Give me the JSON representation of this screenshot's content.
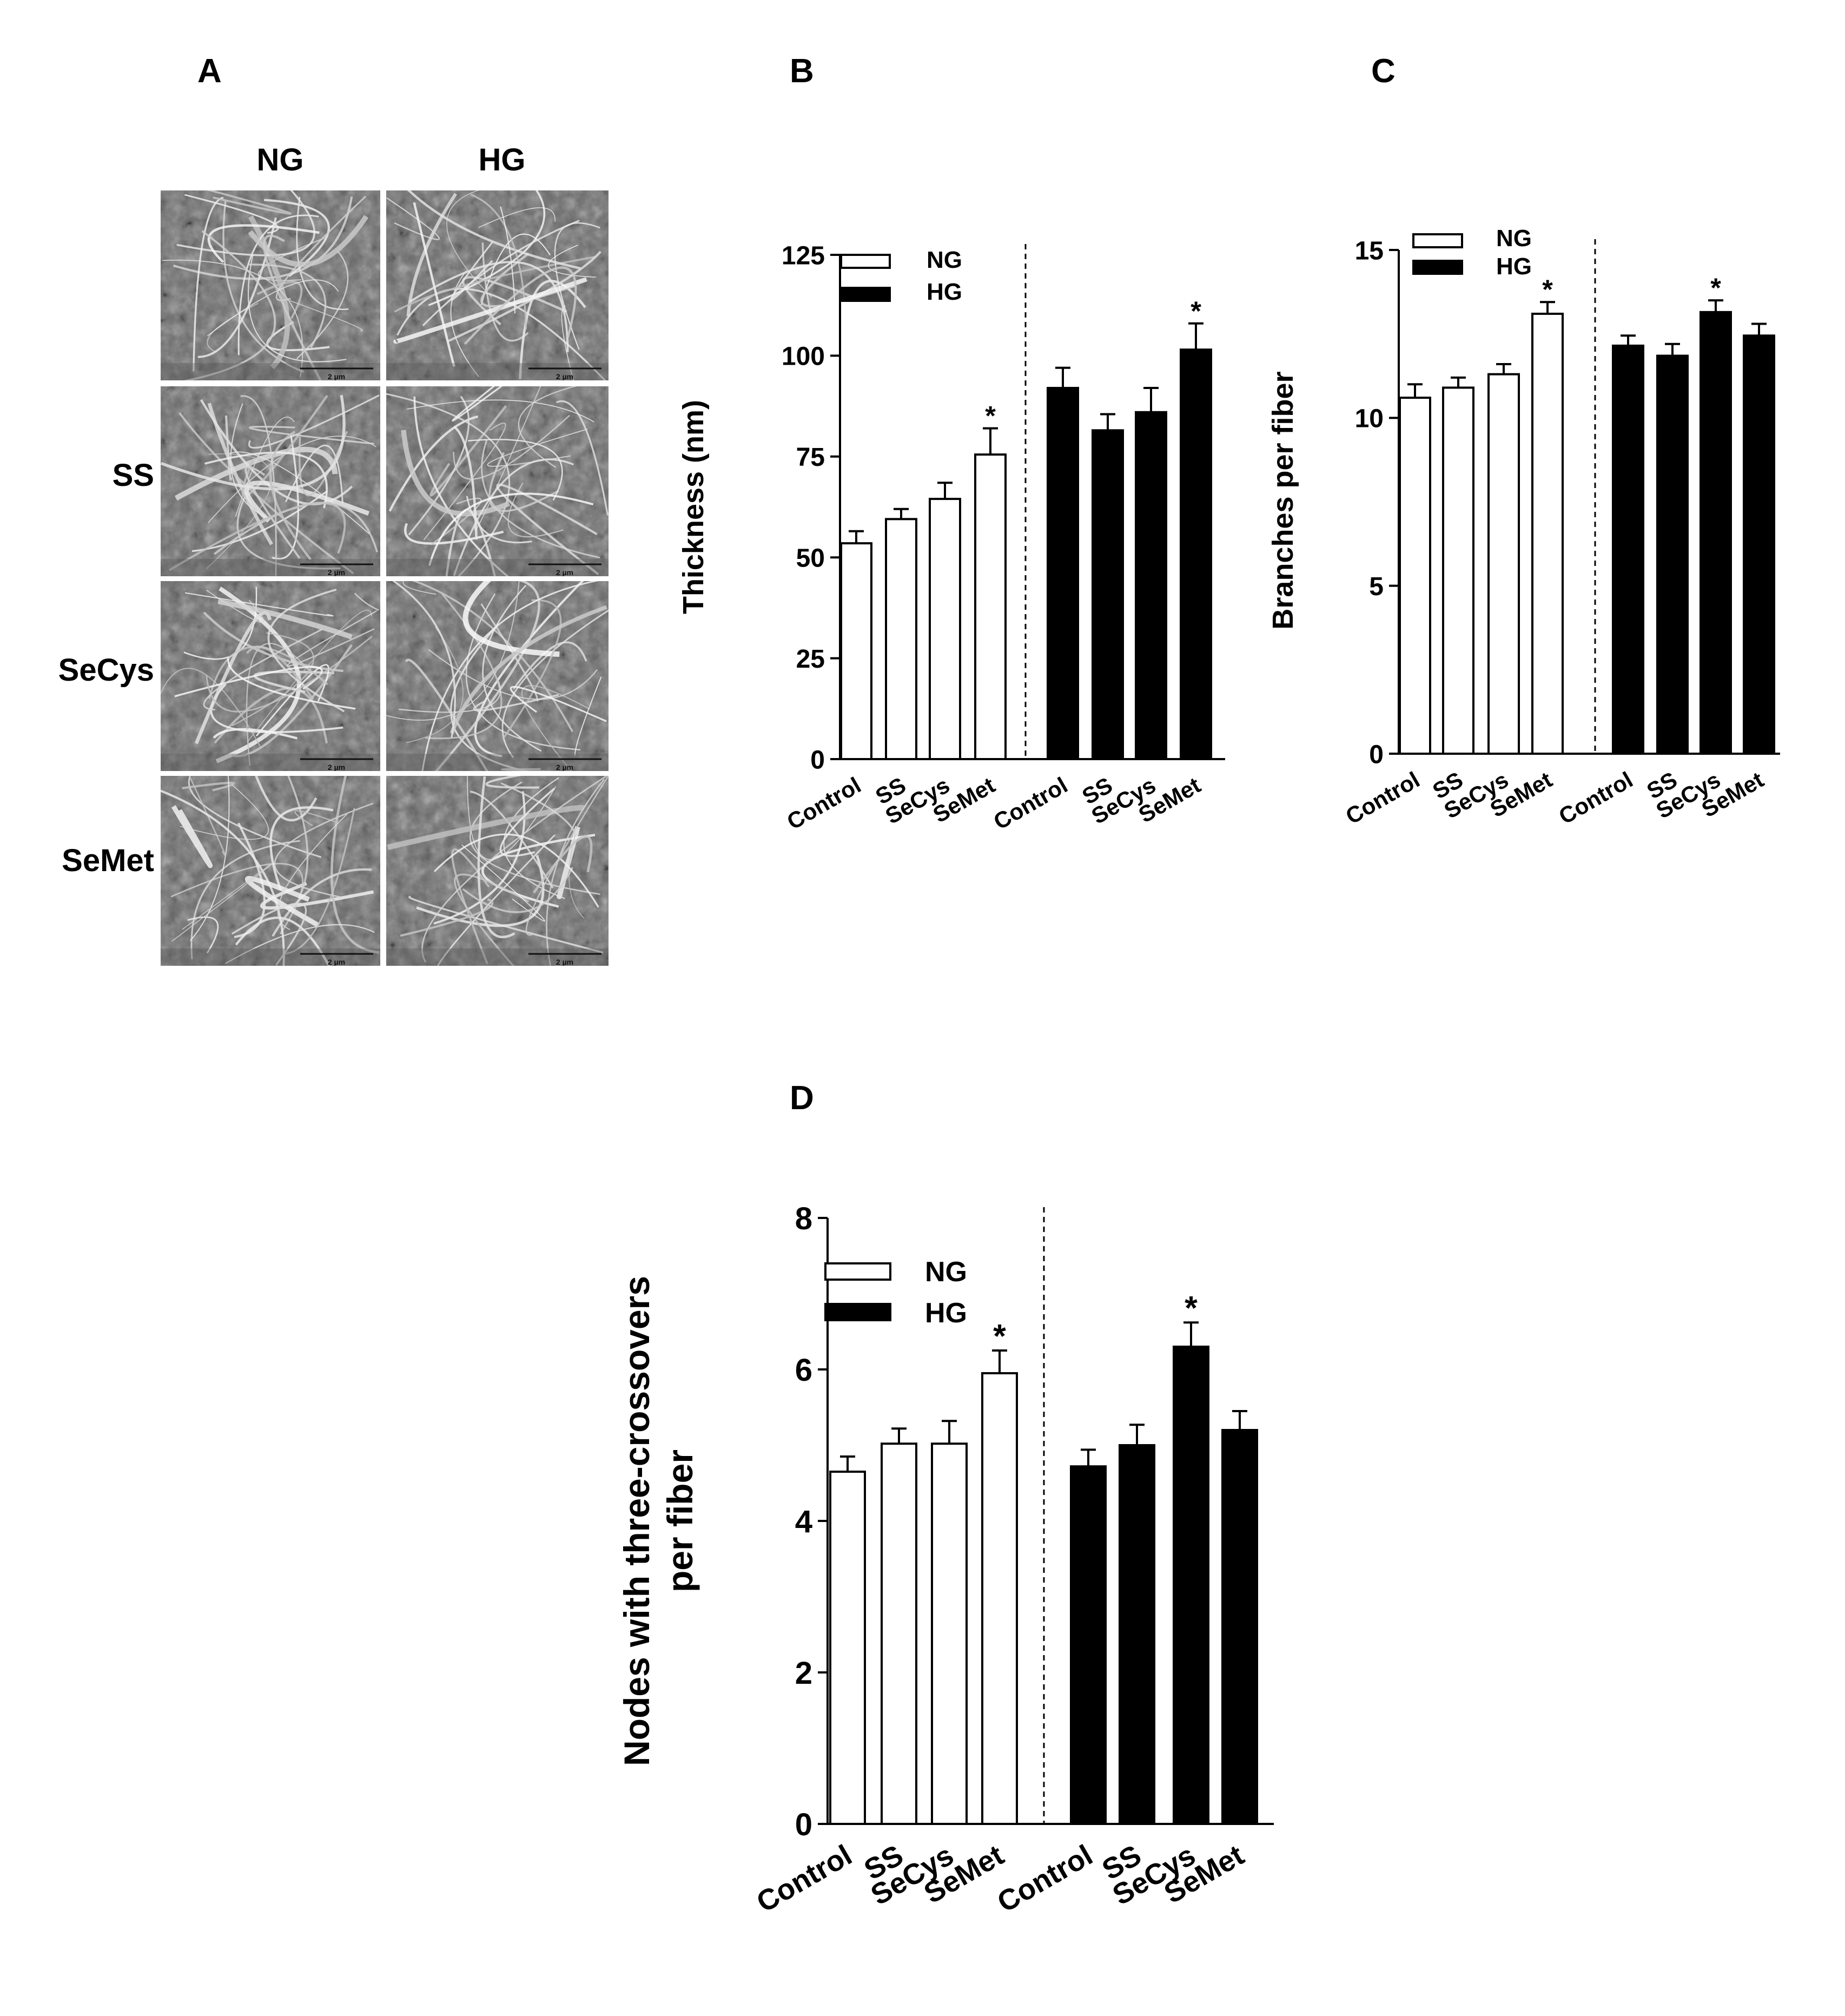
{
  "panels": {
    "A": {
      "label": "A",
      "column_headers": [
        "NG",
        "HG"
      ],
      "row_labels": [
        "",
        "SS",
        "SeCys",
        "SeMet"
      ],
      "scale_bar_text": "2 µm"
    },
    "B": {
      "label": "B"
    },
    "C": {
      "label": "C"
    },
    "D": {
      "label": "D"
    }
  },
  "chart_data": [
    {
      "panel": "B",
      "type": "bar",
      "ylabel": [
        "Thickness (nm)"
      ],
      "ylim": [
        0,
        125
      ],
      "yticks": [
        0,
        25,
        50,
        75,
        100,
        125
      ],
      "categories": [
        "Control",
        "SS",
        "SeCys",
        "SeMet"
      ],
      "legend": {
        "position": "top-left",
        "entries": [
          "NG",
          "HG"
        ]
      },
      "series": [
        {
          "name": "NG",
          "color": "#ffffff",
          "values": [
            53.5,
            59.5,
            64.5,
            75.5
          ],
          "errors": [
            3.0,
            2.5,
            4.0,
            6.5
          ],
          "significant": [
            false,
            false,
            false,
            true
          ]
        },
        {
          "name": "HG",
          "color": "#000000",
          "values": [
            92,
            81.5,
            86,
            101.5
          ],
          "errors": [
            5.0,
            4.0,
            6.0,
            6.5
          ],
          "significant": [
            false,
            false,
            false,
            true
          ]
        }
      ],
      "significance_marker": "*"
    },
    {
      "panel": "C",
      "type": "bar",
      "ylabel": [
        "Branches per fiber"
      ],
      "ylim": [
        0,
        15
      ],
      "yticks": [
        0,
        5,
        10,
        15
      ],
      "categories": [
        "Control",
        "SS",
        "SeCys",
        "SeMet"
      ],
      "legend": {
        "position": "top-left",
        "entries": [
          "NG",
          "HG"
        ]
      },
      "series": [
        {
          "name": "NG",
          "color": "#ffffff",
          "values": [
            10.6,
            10.9,
            11.3,
            13.1
          ],
          "errors": [
            0.4,
            0.3,
            0.3,
            0.35
          ],
          "significant": [
            false,
            false,
            false,
            true
          ]
        },
        {
          "name": "HG",
          "color": "#000000",
          "values": [
            12.15,
            11.85,
            13.15,
            12.45
          ],
          "errors": [
            0.3,
            0.35,
            0.35,
            0.35
          ],
          "significant": [
            false,
            false,
            true,
            false
          ]
        }
      ],
      "significance_marker": "*"
    },
    {
      "panel": "D",
      "type": "bar",
      "ylabel": [
        "Nodes with three-crossovers",
        "per fiber"
      ],
      "ylim": [
        0,
        8
      ],
      "yticks": [
        0,
        2,
        4,
        6,
        8
      ],
      "categories": [
        "Control",
        "SS",
        "SeCys",
        "SeMet"
      ],
      "legend": {
        "position": "top-left",
        "entries": [
          "NG",
          "HG"
        ]
      },
      "series": [
        {
          "name": "NG",
          "color": "#ffffff",
          "values": [
            4.65,
            5.02,
            5.02,
            5.95
          ],
          "errors": [
            0.2,
            0.2,
            0.3,
            0.3
          ],
          "significant": [
            false,
            false,
            false,
            true
          ]
        },
        {
          "name": "HG",
          "color": "#000000",
          "values": [
            4.72,
            5.0,
            6.3,
            5.2
          ],
          "errors": [
            0.22,
            0.27,
            0.32,
            0.25
          ],
          "significant": [
            false,
            false,
            true,
            false
          ]
        }
      ],
      "significance_marker": "*"
    }
  ]
}
